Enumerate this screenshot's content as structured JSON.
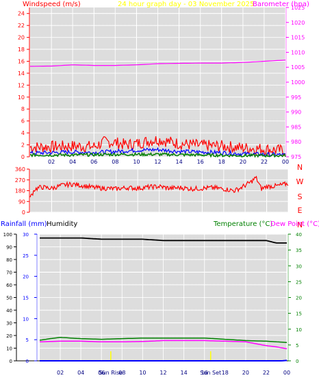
{
  "header": {
    "left": "Windspeed (m/s)",
    "center": "24 hour graph day - 03 November 2025",
    "right": "Barometer (hpa)"
  },
  "wind_axis_labels": [
    "0",
    "2",
    "4",
    "6",
    "8",
    "10",
    "12",
    "14",
    "16",
    "18",
    "20",
    "22",
    "24"
  ],
  "baro_axis_labels": [
    "975",
    "980",
    "985",
    "990",
    "995",
    "1000",
    "1005",
    "1010",
    "1015",
    "1020",
    "1025"
  ],
  "hour_labels": [
    "02",
    "04",
    "06",
    "08",
    "10",
    "12",
    "14",
    "16",
    "18",
    "20",
    "22",
    "00"
  ],
  "dir_axis_labels": [
    "0",
    "90",
    "180",
    "270",
    "360"
  ],
  "compass": [
    "N",
    "W",
    "S",
    "E",
    "N"
  ],
  "bottom_left_labels": {
    "rain": "Rainfall (mm)",
    "humidity": "Humidity"
  },
  "bottom_right_labels": {
    "temperature": "Temperature (°C)",
    "dewpoint": "Dew Point (°C)"
  },
  "humidity_axis_labels": [
    "0",
    "10",
    "20",
    "30",
    "40",
    "50",
    "60",
    "70",
    "80",
    "90",
    "100"
  ],
  "rain_axis_labels": [
    "0",
    "5",
    "10",
    "15",
    "20",
    "25",
    "30"
  ],
  "temp_axis_labels": [
    "0",
    "5",
    "10",
    "15",
    "20",
    "25",
    "30",
    "35",
    "40"
  ],
  "bottom_hour_labels": [
    "02",
    "04",
    "06",
    "Sun Rise",
    "08",
    "10",
    "12",
    "14",
    "Sun Set",
    "16",
    "18",
    "20",
    "22",
    "00"
  ],
  "colors": {
    "windspeed": "#ff0000",
    "gust": "#ff0000",
    "avg": "#0000ff",
    "green": "#008000",
    "barometer": "#ff00ff",
    "direction": "#ff0000",
    "humidity": "#000000",
    "temperature": "#008000",
    "dewpoint": "#ff00ff",
    "rain": "#0000ff",
    "header_center": "#ffff00"
  },
  "chart_data": [
    {
      "type": "line",
      "title": "24 hour graph day - 03 November 2025",
      "xlabel": "",
      "x_ticks": [
        "02",
        "04",
        "06",
        "08",
        "10",
        "12",
        "14",
        "16",
        "18",
        "20",
        "22",
        "00"
      ],
      "xlim_hours": [
        0,
        24
      ],
      "y_left": {
        "label": "Windspeed (m/s)",
        "lim": [
          0,
          25
        ]
      },
      "y_right": {
        "label": "Barometer (hpa)",
        "lim": [
          975,
          1025
        ]
      },
      "series": [
        {
          "name": "Windspeed (m/s)",
          "axis": "left",
          "style": "gust",
          "x": [
            0,
            2,
            4,
            6,
            7,
            8,
            9,
            10,
            11,
            12,
            14,
            16,
            18,
            20,
            22,
            24
          ],
          "values": [
            1.6,
            1.7,
            1.8,
            1.7,
            2.5,
            2.4,
            2.0,
            2.2,
            2.6,
            2.9,
            2.2,
            1.9,
            1.8,
            1.5,
            1.3,
            1.0
          ]
        },
        {
          "axis": "left",
          "style": "avg",
          "x": [
            0,
            2,
            4,
            6,
            8,
            10,
            12,
            14,
            16,
            18,
            20,
            22,
            24
          ],
          "values": [
            0.6,
            0.7,
            0.8,
            0.7,
            0.9,
            1.1,
            1.2,
            0.9,
            0.8,
            0.7,
            0.5,
            0.4,
            0.3
          ]
        },
        {
          "axis": "left",
          "style": "green",
          "x": [
            0,
            4,
            8,
            12,
            16,
            20,
            24
          ],
          "values": [
            0.3,
            0.3,
            0.4,
            0.4,
            0.3,
            0.2,
            0.2
          ]
        },
        {
          "name": "Barometer (hpa)",
          "axis": "right",
          "x": [
            0,
            2,
            4,
            6,
            8,
            10,
            12,
            14,
            16,
            18,
            20,
            22,
            24
          ],
          "values": [
            1005.3,
            1005.4,
            1005.8,
            1005.6,
            1005.6,
            1005.8,
            1006.2,
            1006.3,
            1006.4,
            1006.4,
            1006.6,
            1007.0,
            1007.4
          ]
        }
      ]
    },
    {
      "type": "line",
      "xlim_hours": [
        0,
        24
      ],
      "y_left": {
        "lim": [
          0,
          360
        ],
        "ticks": [
          0,
          90,
          180,
          270,
          360
        ]
      },
      "y_right": {
        "ticks": [
          "N",
          "W",
          "S",
          "E",
          "N"
        ]
      },
      "series": [
        {
          "x": [
            0,
            0.4,
            1,
            2,
            3,
            4,
            5,
            6,
            7,
            8,
            9,
            10,
            11,
            12,
            13,
            14,
            15,
            16,
            17,
            18,
            19,
            19.5,
            20,
            20.5,
            21,
            21.5,
            22,
            23,
            24
          ],
          "values": [
            120,
            190,
            210,
            200,
            225,
            235,
            220,
            205,
            200,
            195,
            205,
            200,
            210,
            215,
            200,
            205,
            195,
            200,
            205,
            195,
            180,
            200,
            225,
            250,
            290,
            195,
            215,
            220,
            240
          ]
        }
      ]
    },
    {
      "type": "line",
      "xlim_hours": [
        0,
        24
      ],
      "x_ticks": [
        "02",
        "04",
        "06",
        "08",
        "10",
        "12",
        "14",
        "16",
        "18",
        "20",
        "22",
        "00"
      ],
      "annotations": [
        {
          "label": "Sun Rise",
          "hour": 6.9
        },
        {
          "label": "Sun Set",
          "hour": 16.6
        }
      ],
      "y_left": {
        "label": "Humidity",
        "lim": [
          0,
          100
        ]
      },
      "y_left_inner": {
        "label": "Rainfall (mm)",
        "lim": [
          0,
          30
        ]
      },
      "y_right": {
        "label": "Temperature (°C)",
        "lim": [
          0,
          40
        ]
      },
      "series": [
        {
          "name": "Humidity",
          "axis": "left",
          "x": [
            0,
            2,
            4,
            6,
            8,
            10,
            12,
            14,
            16,
            18,
            20,
            22,
            23,
            24
          ],
          "values": [
            97,
            97,
            97,
            96,
            96,
            96,
            95,
            95,
            95,
            95,
            95,
            95,
            93,
            93
          ]
        },
        {
          "name": "Temperature (°C)",
          "axis": "right",
          "x": [
            0,
            1,
            2,
            4,
            6,
            8,
            10,
            12,
            14,
            16,
            18,
            20,
            22,
            24
          ],
          "values": [
            6.5,
            7,
            7.4,
            7.0,
            6.8,
            7.0,
            7.2,
            7.2,
            7.2,
            7.2,
            6.8,
            6.4,
            6.2,
            5.8
          ]
        },
        {
          "name": "Dew Point (°C)",
          "axis": "right",
          "x": [
            0,
            2,
            4,
            6,
            8,
            10,
            12,
            14,
            16,
            18,
            20,
            21,
            22,
            23,
            24
          ],
          "values": [
            6.0,
            6.2,
            6.2,
            6.0,
            6.0,
            6.1,
            6.4,
            6.4,
            6.4,
            6.2,
            6.0,
            5.4,
            4.8,
            4.4,
            3.8
          ]
        },
        {
          "name": "Rainfall (mm)",
          "axis": "left_inner",
          "x": [
            0,
            12,
            23.5,
            24
          ],
          "values": [
            0,
            0,
            0,
            0.1
          ]
        }
      ]
    }
  ]
}
